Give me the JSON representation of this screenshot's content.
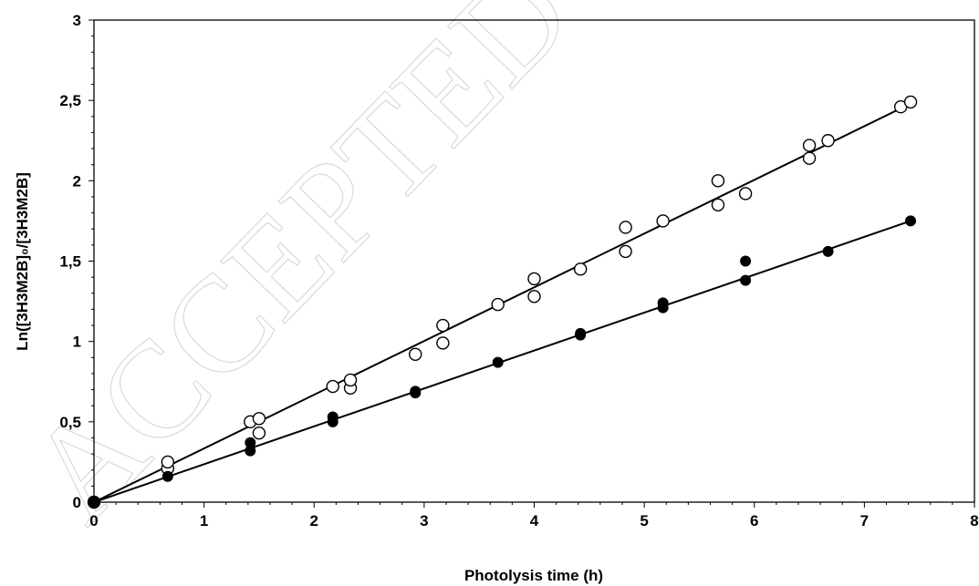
{
  "watermark": "ACCEPTED MANUSCRIPT",
  "chart_data": {
    "type": "scatter",
    "xlabel": "Photolysis time (h)",
    "ylabel": "Ln([3H3M2B]₀/[3H3M2B]",
    "xlim": [
      0,
      8
    ],
    "ylim": [
      0,
      3
    ],
    "xticks": [
      0,
      1,
      2,
      3,
      4,
      5,
      6,
      7,
      8
    ],
    "yticks": [
      0,
      0.5,
      1,
      1.5,
      2,
      2.5,
      3
    ],
    "xtick_labels": [
      "0",
      "1",
      "2",
      "3",
      "4",
      "5",
      "6",
      "7",
      "8"
    ],
    "ytick_labels": [
      "0",
      "0,5",
      "1",
      "1,5",
      "2",
      "2,5",
      "3"
    ],
    "grid": false,
    "series": [
      {
        "marker": "open-circle",
        "color": "#000000",
        "points": [
          [
            0,
            0
          ],
          [
            0.67,
            0.21
          ],
          [
            0.67,
            0.25
          ],
          [
            1.42,
            0.5
          ],
          [
            1.5,
            0.43
          ],
          [
            1.5,
            0.52
          ],
          [
            2.17,
            0.72
          ],
          [
            2.33,
            0.71
          ],
          [
            2.33,
            0.76
          ],
          [
            2.92,
            0.92
          ],
          [
            3.17,
            0.99
          ],
          [
            3.17,
            1.1
          ],
          [
            3.67,
            1.23
          ],
          [
            4.0,
            1.28
          ],
          [
            4.0,
            1.39
          ],
          [
            4.42,
            1.45
          ],
          [
            4.83,
            1.56
          ],
          [
            4.83,
            1.71
          ],
          [
            5.17,
            1.75
          ],
          [
            5.67,
            1.85
          ],
          [
            5.67,
            2.0
          ],
          [
            5.92,
            1.92
          ],
          [
            6.5,
            2.14
          ],
          [
            6.5,
            2.22
          ],
          [
            6.67,
            2.25
          ],
          [
            7.33,
            2.46
          ],
          [
            7.42,
            2.49
          ]
        ],
        "fit": {
          "x": [
            0,
            7.42
          ],
          "y": [
            0,
            2.48
          ]
        }
      },
      {
        "marker": "filled-circle",
        "color": "#000000",
        "points": [
          [
            0,
            0
          ],
          [
            0.67,
            0.16
          ],
          [
            1.42,
            0.32
          ],
          [
            1.42,
            0.37
          ],
          [
            2.17,
            0.5
          ],
          [
            2.17,
            0.53
          ],
          [
            2.92,
            0.68
          ],
          [
            2.92,
            0.69
          ],
          [
            3.67,
            0.87
          ],
          [
            4.42,
            1.04
          ],
          [
            4.42,
            1.05
          ],
          [
            5.17,
            1.21
          ],
          [
            5.17,
            1.24
          ],
          [
            5.92,
            1.38
          ],
          [
            5.92,
            1.5
          ],
          [
            6.67,
            1.56
          ],
          [
            7.42,
            1.75
          ]
        ],
        "fit": {
          "x": [
            0,
            7.42
          ],
          "y": [
            0,
            1.75
          ]
        }
      }
    ]
  }
}
